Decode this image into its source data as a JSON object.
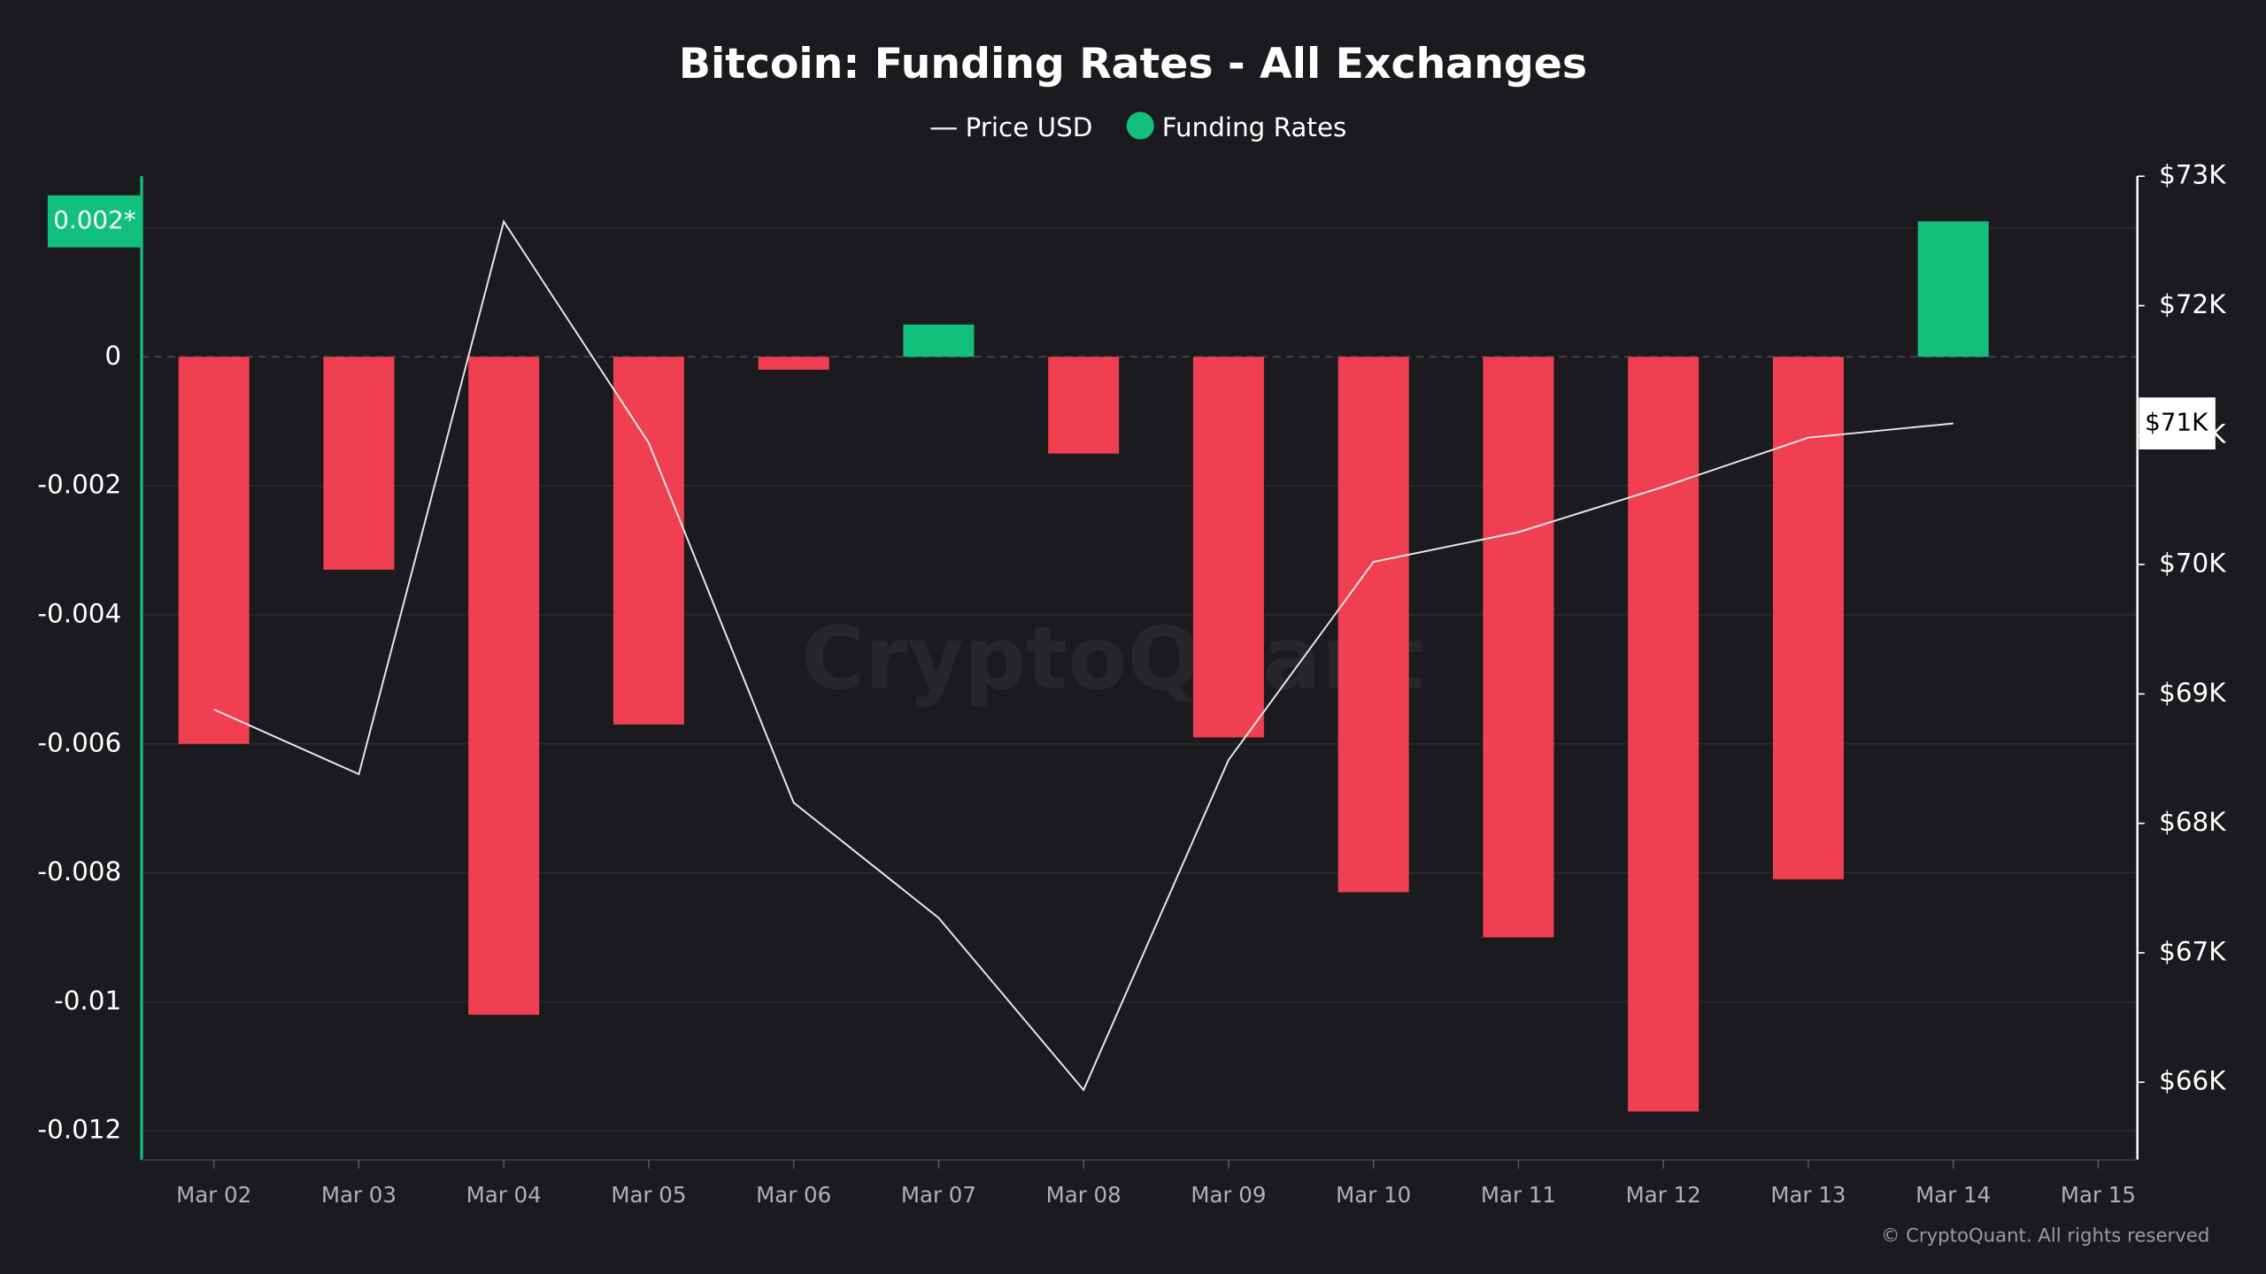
{
  "chart_data": {
    "type": "bar",
    "title": "Bitcoin: Funding Rates - All Exchanges",
    "watermark": "CryptoQuant",
    "footer": "© CryptoQuant. All rights reserved",
    "categories": [
      "Mar 02",
      "Mar 03",
      "Mar 04",
      "Mar 05",
      "Mar 06",
      "Mar 07",
      "Mar 08",
      "Mar 09",
      "Mar 10",
      "Mar 11",
      "Mar 12",
      "Mar 13",
      "Mar 14",
      "Mar 15"
    ],
    "series": [
      {
        "name": "Price USD",
        "type": "line",
        "axis": "y2",
        "color": "#e8e8e8",
        "values": [
          68880,
          68380,
          72650,
          70940,
          68160,
          67270,
          65940,
          68490,
          70020,
          70250,
          70600,
          70980,
          71090,
          null
        ],
        "value_labels": [
          null,
          null,
          null,
          null,
          null,
          null,
          null,
          null,
          null,
          null,
          null,
          null,
          "$71K",
          null
        ]
      },
      {
        "name": "Funding Rates",
        "type": "bar",
        "color": "#12c07e",
        "negative_color": "#ef3f50",
        "values": [
          -0.006,
          -0.0033,
          -0.0102,
          -0.0057,
          -0.0002,
          0.0005,
          -0.0015,
          -0.0059,
          -0.0083,
          -0.009,
          -0.0117,
          -0.0081,
          0.0021,
          null
        ],
        "value_labels": [
          null,
          null,
          null,
          null,
          null,
          null,
          null,
          null,
          null,
          null,
          null,
          null,
          "0.002*",
          null
        ]
      }
    ],
    "ylim": [
      -0.01245,
      0.0028
    ],
    "yticks": [
      0.002,
      0,
      -0.002,
      -0.004,
      -0.006,
      -0.008,
      -0.01,
      -0.012
    ],
    "y2lim": [
      65400,
      73000
    ],
    "y2ticks": [
      {
        "value": 66000,
        "label": "$66K"
      },
      {
        "value": 67000,
        "label": "$67K"
      },
      {
        "value": 68000,
        "label": "$68K"
      },
      {
        "value": 69000,
        "label": "$69K"
      },
      {
        "value": 70000,
        "label": "$70K"
      },
      {
        "value": 71000,
        "label": "$71K"
      },
      {
        "value": 72000,
        "label": "$72K"
      },
      {
        "value": 73000,
        "label": "$73K"
      }
    ],
    "grid": true
  }
}
